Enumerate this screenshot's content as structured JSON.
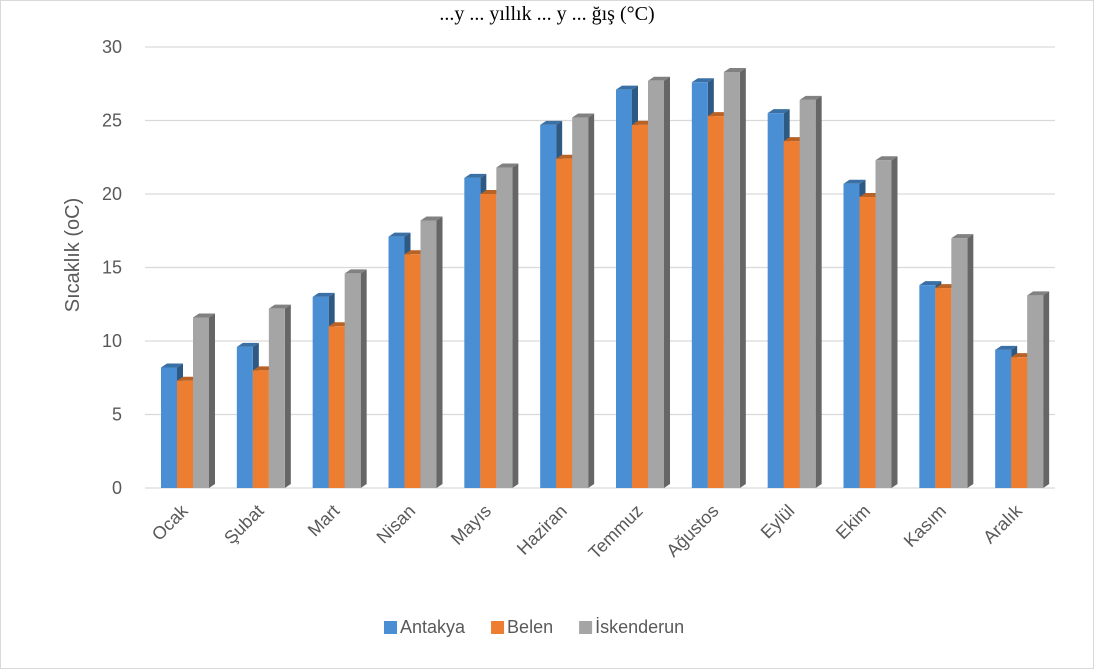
{
  "caption": "...y ... yıllık ... y ... ğış (°C)",
  "chart_data": {
    "type": "bar",
    "title": "",
    "xlabel": "",
    "ylabel": "Sıcaklık (oC)",
    "ylim": [
      0,
      30
    ],
    "yticks": [
      0,
      5,
      10,
      15,
      20,
      25,
      30
    ],
    "grid": true,
    "legend_position": "bottom",
    "categories": [
      "Ocak",
      "Şubat",
      "Mart",
      "Nisan",
      "Mayıs",
      "Haziran",
      "Temmuz",
      "Ağustos",
      "Eylül",
      "Ekim",
      "Kasım",
      "Aralık"
    ],
    "series": [
      {
        "name": "Antakya",
        "color": "#4a8fd4",
        "values": [
          8.2,
          9.6,
          13.0,
          17.1,
          21.1,
          24.7,
          27.1,
          27.6,
          25.5,
          20.7,
          13.8,
          9.4
        ]
      },
      {
        "name": "Belen",
        "color": "#ed7d31",
        "values": [
          7.3,
          8.0,
          11.0,
          15.9,
          20.0,
          22.4,
          24.7,
          25.3,
          23.6,
          19.8,
          13.6,
          8.9
        ]
      },
      {
        "name": "İskenderun",
        "color": "#a5a5a5",
        "values": [
          11.6,
          12.2,
          14.6,
          18.2,
          21.8,
          25.2,
          27.7,
          28.3,
          26.4,
          22.3,
          17.0,
          13.1
        ]
      }
    ]
  }
}
